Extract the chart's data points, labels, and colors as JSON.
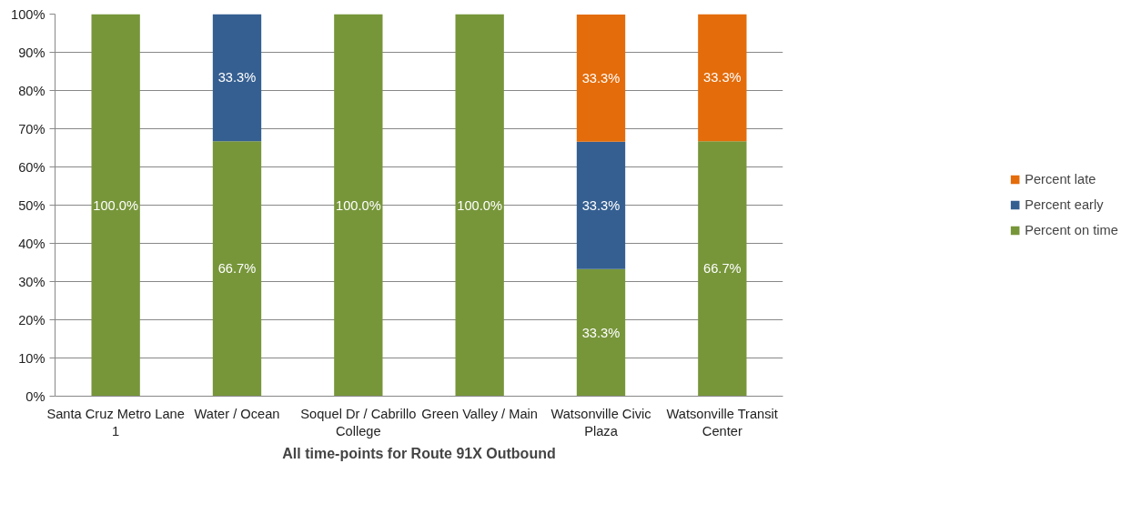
{
  "chart_data": {
    "type": "bar",
    "stacked": true,
    "xlabel": "All time-points for Route 91X Outbound",
    "categories": [
      "Santa Cruz Metro Lane 1",
      "Water / Ocean",
      "Soquel Dr / Cabrillo College",
      "Green Valley / Main",
      "Watsonville Civic Plaza",
      "Watsonville Transit Center"
    ],
    "series": [
      {
        "name": "Percent on time",
        "color": "#77963a",
        "values": [
          100,
          66.7,
          100,
          100,
          33.3,
          66.7
        ],
        "value_labels": [
          "100.0%",
          "66.7%",
          "100.0%",
          "100.0%",
          "33.3%",
          "66.7%"
        ]
      },
      {
        "name": "Percent early",
        "color": "#355f91",
        "values": [
          0,
          33.3,
          0,
          0,
          33.3,
          0
        ],
        "value_labels": [
          null,
          "33.3%",
          null,
          null,
          "33.3%",
          null
        ]
      },
      {
        "name": "Percent late",
        "color": "#e46c0a",
        "values": [
          0,
          0,
          0,
          0,
          33.3,
          33.3
        ],
        "value_labels": [
          null,
          null,
          null,
          null,
          "33.3%",
          "33.3%"
        ]
      }
    ],
    "ylim": [
      0,
      100
    ],
    "yticks": [
      {
        "value": 0,
        "label": "0%"
      },
      {
        "value": 10,
        "label": "10%"
      },
      {
        "value": 20,
        "label": "20%"
      },
      {
        "value": 30,
        "label": "30%"
      },
      {
        "value": 40,
        "label": "40%"
      },
      {
        "value": 50,
        "label": "50%"
      },
      {
        "value": 60,
        "label": "60%"
      },
      {
        "value": 70,
        "label": "70%"
      },
      {
        "value": 80,
        "label": "80%"
      },
      {
        "value": 90,
        "label": "90%"
      },
      {
        "value": 100,
        "label": "100%"
      }
    ],
    "grid": "y",
    "legend": "right"
  }
}
